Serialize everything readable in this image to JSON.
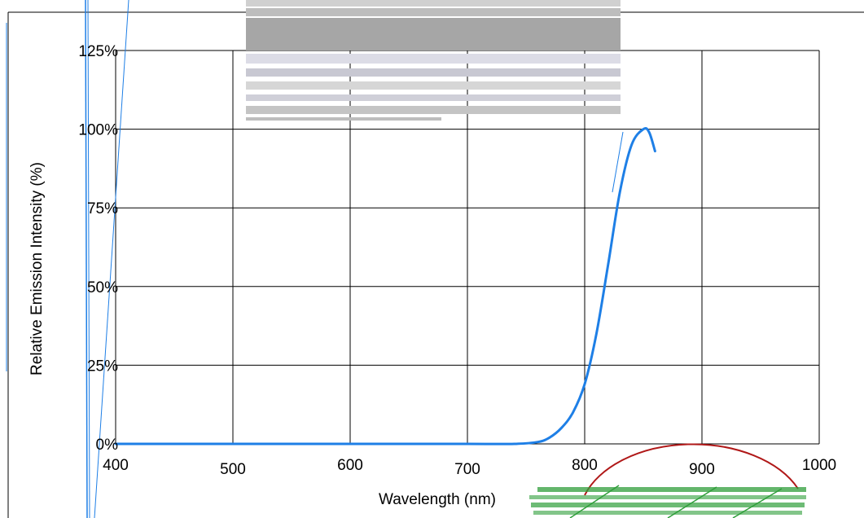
{
  "colors": {
    "curve": "#1e7fe6",
    "grid": "#000000",
    "scan_artifact": "#a6a6a6",
    "stamp_red": "#b01818",
    "stamp_green": "#2f9e3a"
  },
  "chart_data": {
    "type": "line",
    "xlabel": "Wavelength  (nm)",
    "ylabel": "Relative Emission Intensity (%)",
    "xlim": [
      400,
      1000
    ],
    "ylim": [
      0,
      125
    ],
    "x_ticks": [
      400,
      500,
      600,
      700,
      800,
      900,
      1000
    ],
    "y_ticks": [
      0,
      25,
      50,
      75,
      100,
      125
    ],
    "y_tick_labels": [
      "0%",
      "25%",
      "50%",
      "75%",
      "100%",
      "125%"
    ],
    "grid": true,
    "series": [
      {
        "x": [
          400,
          500,
          600,
          700,
          740,
          760,
          770,
          780,
          790,
          800,
          810,
          820,
          830,
          840,
          850,
          855,
          860
        ],
        "y": [
          0,
          0,
          0,
          0,
          0,
          0.6,
          2,
          5,
          10,
          19,
          35,
          57,
          80,
          95,
          100,
          99,
          93
        ]
      }
    ]
  }
}
